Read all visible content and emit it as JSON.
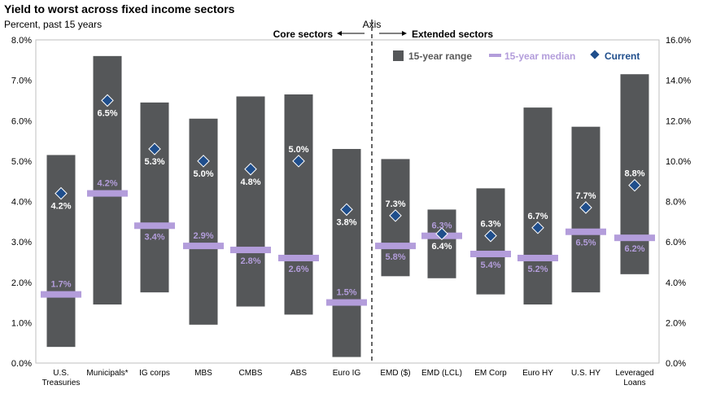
{
  "title": "Yield to worst across fixed income sectors",
  "subtitle": "Percent, past 15 years",
  "section_labels": {
    "core": "Core sectors",
    "extended": "Extended sectors",
    "axis_note": "Axis"
  },
  "legend": {
    "range": "15-year range",
    "median": "15-year median",
    "current": "Current"
  },
  "colors": {
    "range_bar": "#555759",
    "median": "#b39ddb",
    "current": "#1f4e8c"
  },
  "chart_data": {
    "type": "range-bar",
    "categories": [
      "U.S. Treasuries",
      "Municipals*",
      "IG corps",
      "MBS",
      "CMBS",
      "ABS",
      "Euro IG",
      "EMD ($)",
      "EMD (LCL)",
      "EM Corp",
      "Euro HY",
      "U.S. HY",
      "Leveraged Loans"
    ],
    "axis_assignment": [
      "left",
      "left",
      "left",
      "left",
      "left",
      "left",
      "left",
      "right",
      "right",
      "right",
      "right",
      "right",
      "right"
    ],
    "left_axis": {
      "ylim": [
        0,
        8
      ],
      "ticks": [
        "0.0%",
        "1.0%",
        "2.0%",
        "3.0%",
        "4.0%",
        "5.0%",
        "6.0%",
        "7.0%",
        "8.0%"
      ]
    },
    "right_axis": {
      "ylim": [
        0,
        16
      ],
      "ticks": [
        "0.0%",
        "2.0%",
        "4.0%",
        "6.0%",
        "8.0%",
        "10.0%",
        "12.0%",
        "14.0%",
        "16.0%"
      ]
    },
    "range_low": [
      0.4,
      1.45,
      1.75,
      0.95,
      1.4,
      1.2,
      0.15,
      4.3,
      4.2,
      3.4,
      2.9,
      3.5,
      4.4
    ],
    "range_high": [
      5.15,
      7.6,
      6.45,
      6.05,
      6.6,
      6.65,
      5.3,
      10.1,
      7.6,
      8.65,
      12.65,
      11.7,
      14.3
    ],
    "median": [
      1.7,
      4.2,
      3.4,
      2.9,
      2.8,
      2.6,
      1.5,
      5.8,
      6.3,
      5.4,
      5.2,
      6.5,
      6.2
    ],
    "current": [
      4.2,
      6.5,
      5.3,
      5.0,
      4.8,
      5.0,
      3.8,
      7.3,
      6.4,
      6.3,
      6.7,
      7.7,
      8.8
    ],
    "median_labels": [
      "1.7%",
      "4.2%",
      "3.4%",
      "2.9%",
      "2.8%",
      "2.6%",
      "1.5%",
      "5.8%",
      "6.3%",
      "5.4%",
      "5.2%",
      "6.5%",
      "6.2%"
    ],
    "current_labels": [
      "4.2%",
      "6.5%",
      "5.3%",
      "5.0%",
      "4.8%",
      "5.0%",
      "3.8%",
      "7.3%",
      "6.4%",
      "6.3%",
      "6.7%",
      "7.7%",
      "8.8%"
    ]
  }
}
